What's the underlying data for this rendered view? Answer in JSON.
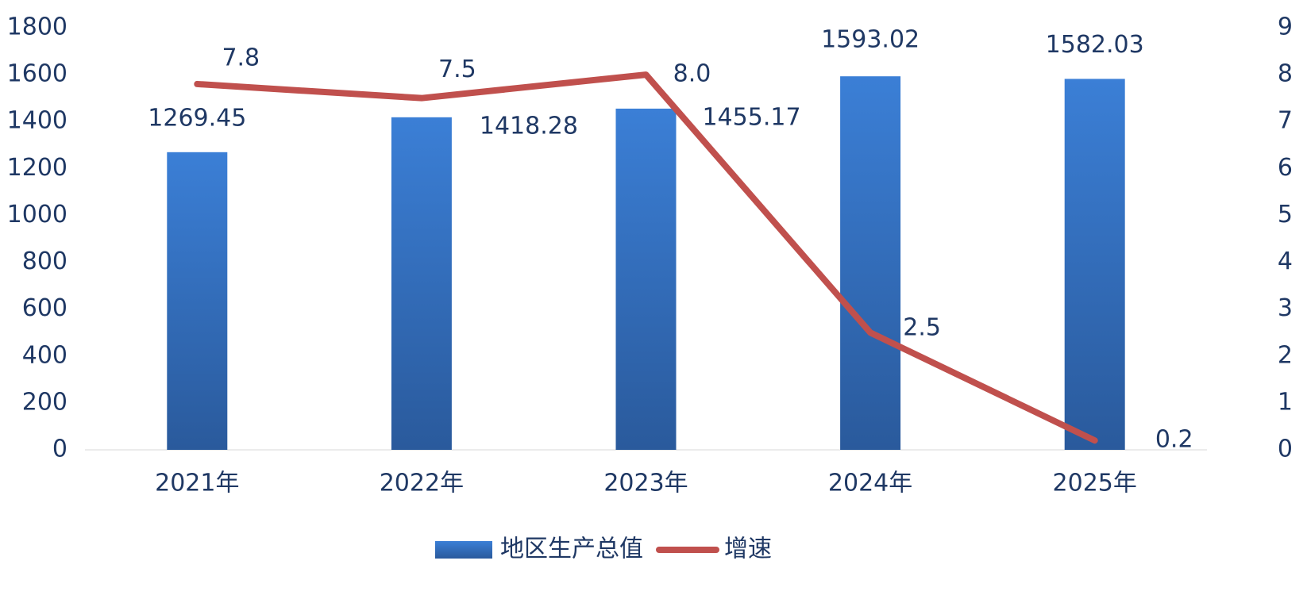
{
  "chart_data": {
    "type": "bar",
    "categories": [
      "2021年",
      "2022年",
      "2023年",
      "2024年",
      "2025年"
    ],
    "series": [
      {
        "name": "地区生产总值",
        "color": "#3674c4",
        "values": [
          1269.45,
          1418.28,
          1455.17,
          1593.02,
          1582.03
        ]
      },
      {
        "name": "增速",
        "type": "line",
        "axis": "y2",
        "color": "#c0504d",
        "values": [
          7.8,
          7.5,
          8.0,
          2.5,
          0.2
        ],
        "value_labels": [
          "7.8",
          "7.5",
          "8.0",
          "2.5",
          "0.2"
        ]
      }
    ],
    "ylim": [
      0,
      1800
    ],
    "yticks": [
      0,
      200,
      400,
      600,
      800,
      1000,
      1200,
      1400,
      1600,
      1800
    ],
    "y2lim": [
      0,
      9
    ],
    "y2ticks": [
      0,
      1,
      2,
      3,
      4,
      5,
      6,
      7,
      8,
      9
    ],
    "legend": "bottom"
  }
}
